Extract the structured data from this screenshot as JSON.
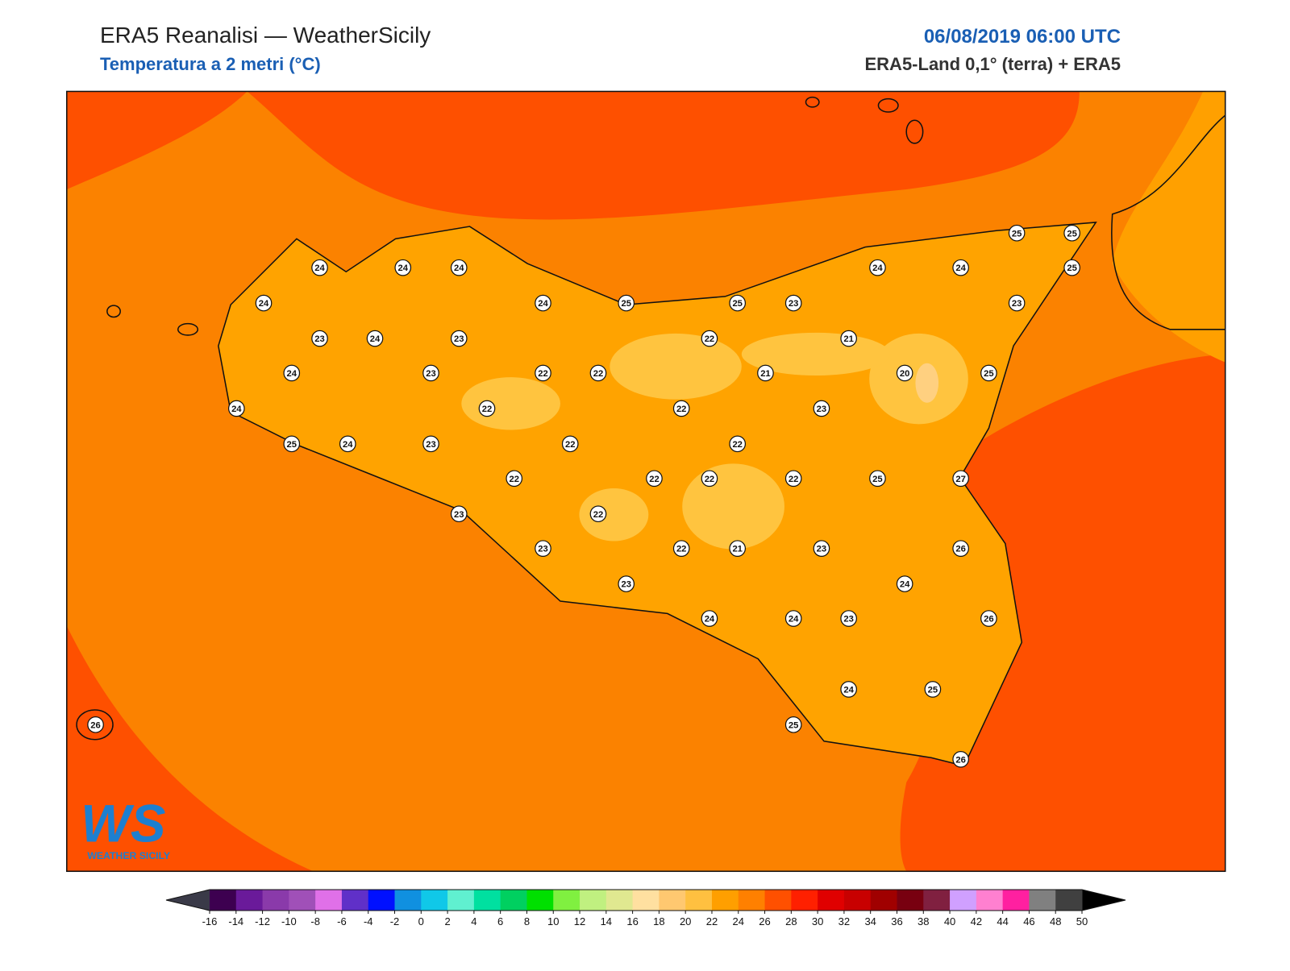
{
  "header": {
    "title": "ERA5 Reanalisi — WeatherSicily",
    "subtitle": "Temperatura a 2 metri (°C)",
    "date": "06/08/2019 06:00 UTC",
    "source": "ERA5-Land 0,1° (terra) + ERA5"
  },
  "logo": {
    "mark": "WS",
    "text": "WEATHER SICILY"
  },
  "stations": [
    24,
    24,
    24,
    24,
    23,
    24,
    23,
    24,
    23,
    24,
    25,
    25,
    23,
    24,
    24,
    25,
    25,
    25,
    23,
    22,
    21,
    22,
    22,
    21,
    20,
    25,
    22,
    22,
    23,
    24,
    25,
    24,
    23,
    22,
    22,
    22,
    22,
    22,
    22,
    25,
    27,
    23,
    22,
    23,
    22,
    21,
    23,
    26,
    23,
    24,
    24,
    24,
    23,
    26,
    24,
    25,
    25,
    26,
    26
  ],
  "colorbar": {
    "ticks": [
      -16,
      -14,
      -12,
      -10,
      -8,
      -6,
      -4,
      -2,
      0,
      2,
      4,
      6,
      8,
      10,
      12,
      14,
      16,
      18,
      20,
      22,
      24,
      26,
      28,
      30,
      32,
      34,
      36,
      38,
      40,
      42,
      44,
      46,
      48,
      50
    ],
    "colors": [
      "#3d0050",
      "#6a1a9a",
      "#8a3aaa",
      "#a050b8",
      "#e070e8",
      "#6030c8",
      "#0010ff",
      "#1090e0",
      "#10c8e8",
      "#60f0d0",
      "#00e0a0",
      "#00d060",
      "#00e000",
      "#80f040",
      "#c0f080",
      "#e0e890",
      "#ffe0a0",
      "#ffc870",
      "#ffc040",
      "#ff9f00",
      "#ff8000",
      "#ff5000",
      "#ff2000",
      "#e00000",
      "#c80000",
      "#a00000",
      "#780010",
      "#802040",
      "#d0a0ff",
      "#ff80d0",
      "#ff20a0",
      "#808080",
      "#404040"
    ],
    "under_color": "#3a3a48",
    "over_color": "#000000"
  }
}
